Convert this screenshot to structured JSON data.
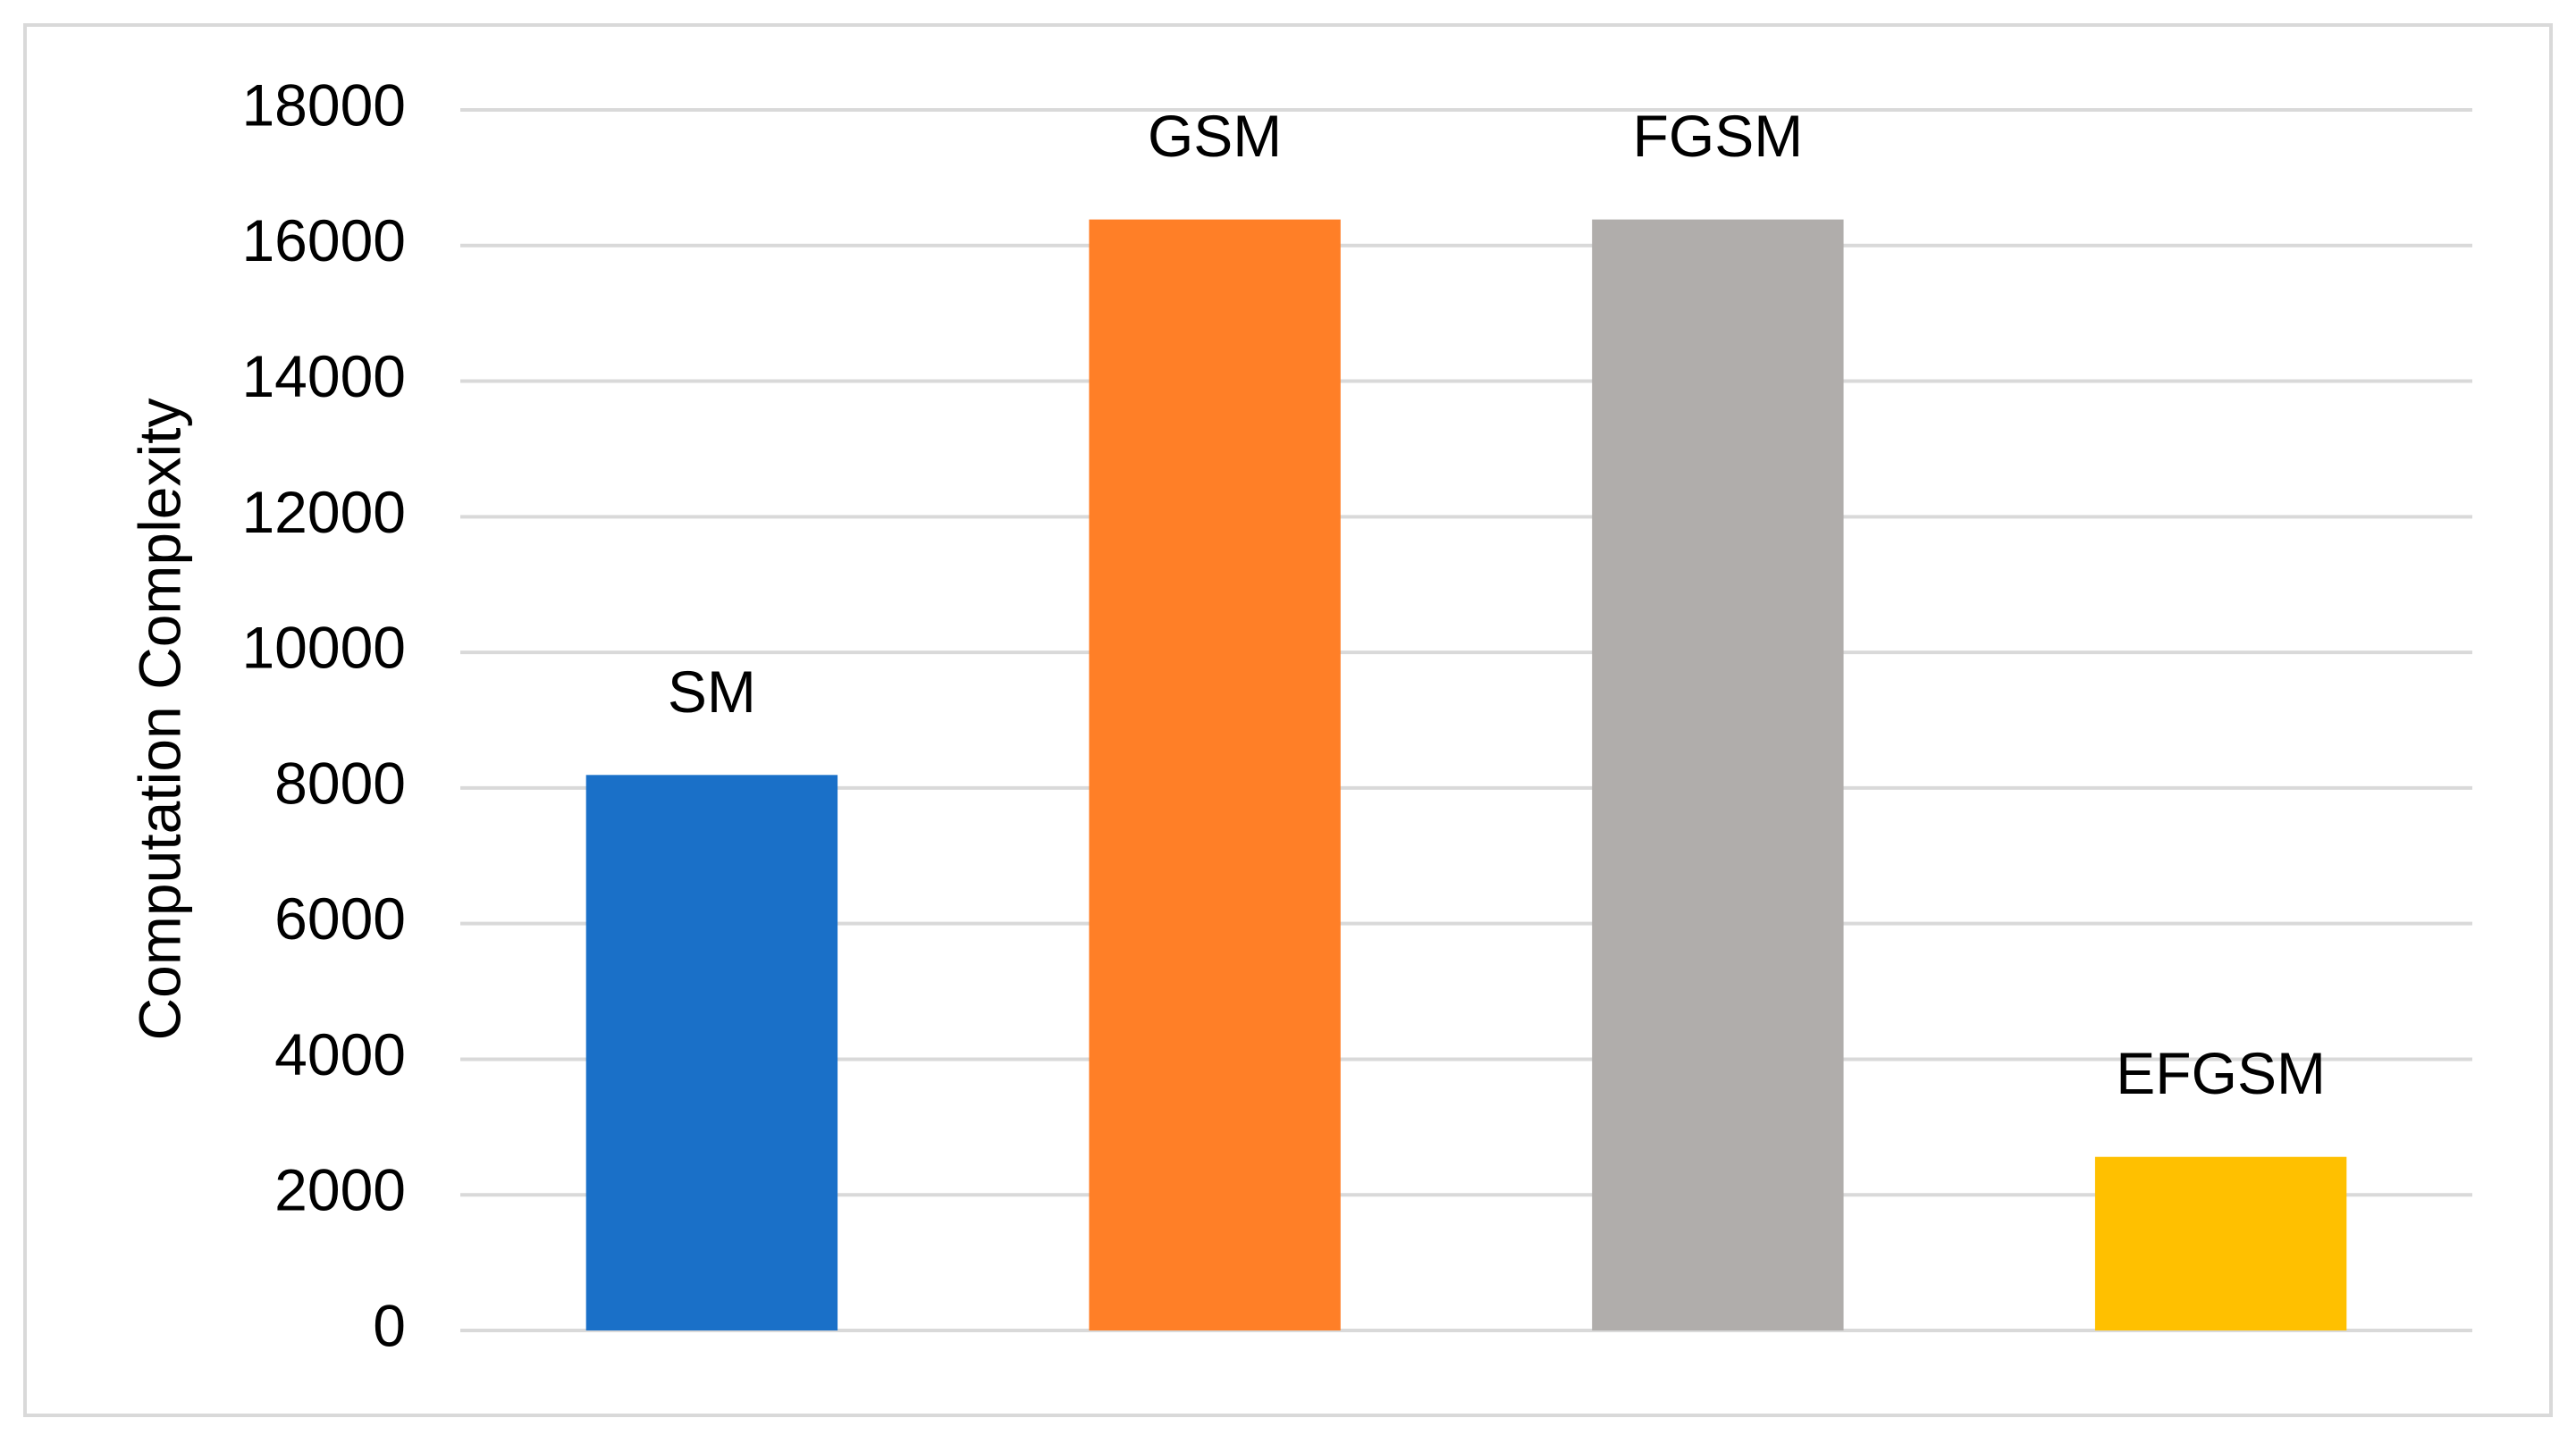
{
  "chart_data": {
    "type": "bar",
    "y_label": "Computation Complexity",
    "categories": [
      "SM",
      "GSM",
      "FGSM",
      "EFGSM"
    ],
    "values": [
      8192,
      16384,
      16384,
      2560
    ],
    "colors": [
      "#1a70c8",
      "#ff7f27",
      "#b0adab",
      "#ffc000"
    ],
    "ylim": [
      0,
      18000
    ],
    "yticks": [
      0,
      2000,
      4000,
      6000,
      8000,
      10000,
      12000,
      14000,
      16000,
      18000
    ],
    "grid": true
  }
}
